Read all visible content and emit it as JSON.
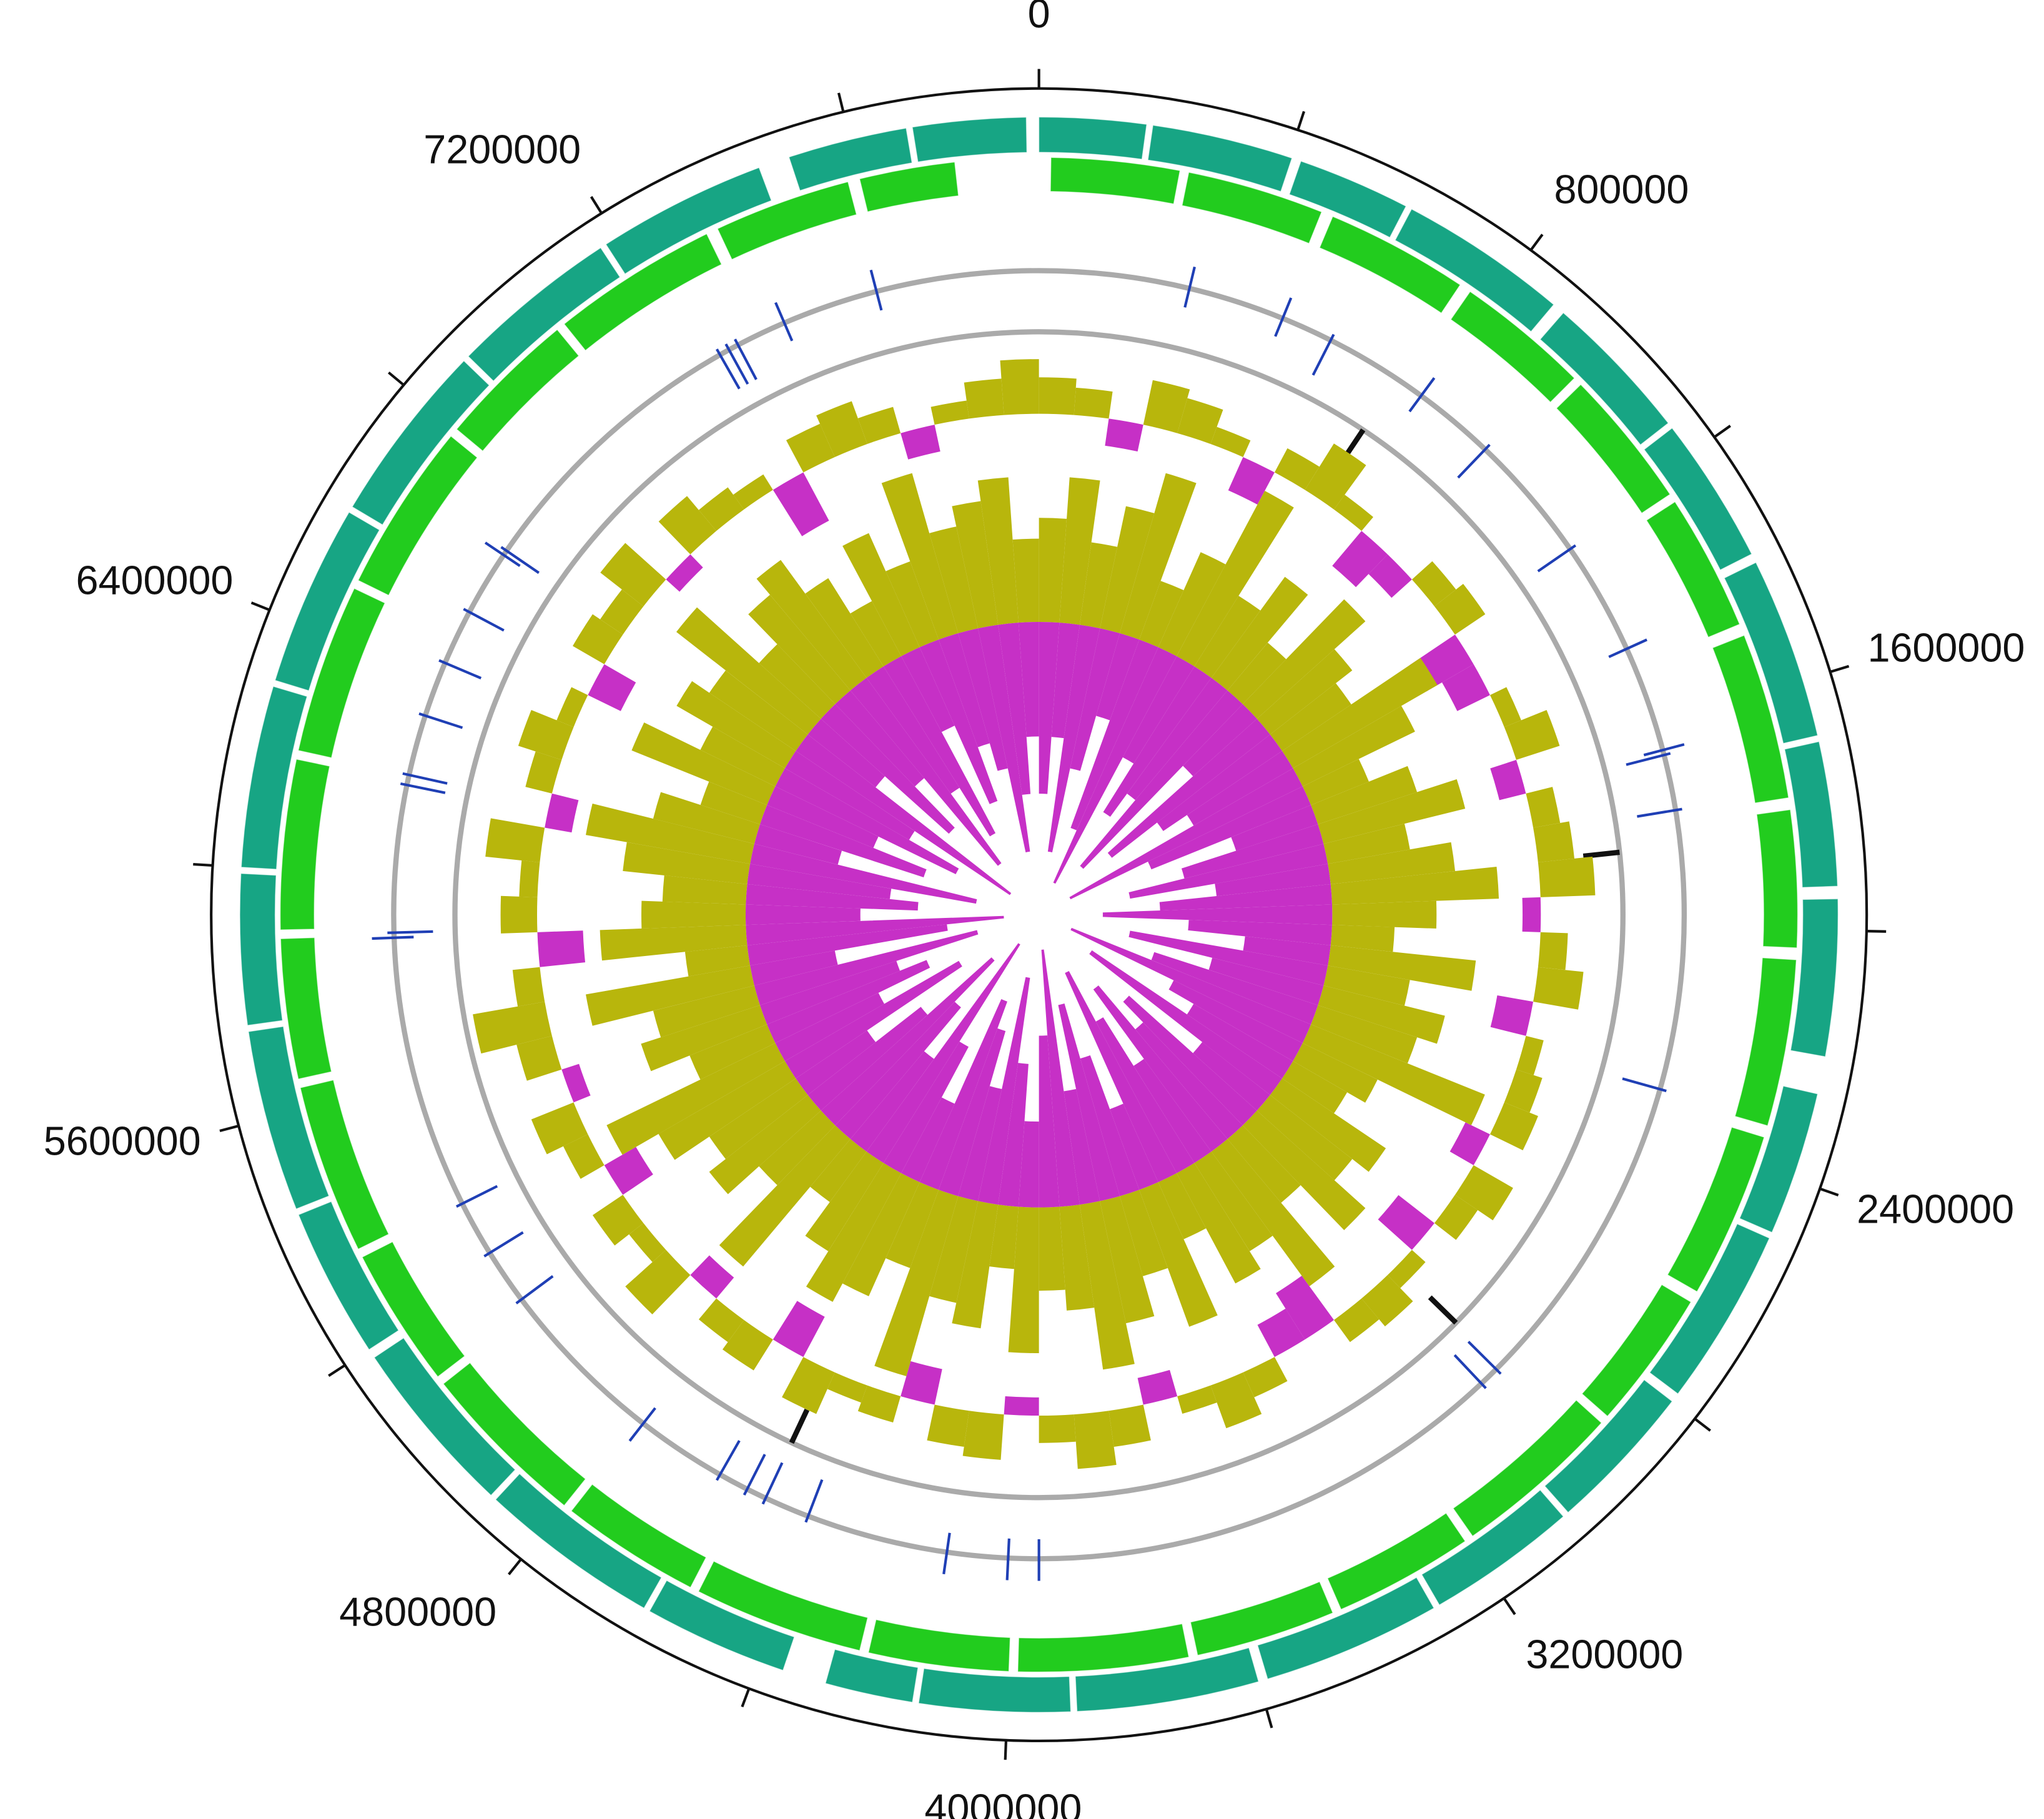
{
  "chart_data": {
    "type": "circular",
    "xlim": [
      0,
      7900000
    ],
    "xticks": [
      0,
      800000,
      1600000,
      2400000,
      3200000,
      4000000,
      4800000,
      5600000,
      6400000,
      7200000
    ],
    "minor_xticks": [
      400000,
      1200000,
      2000000,
      2800000,
      3600000,
      4400000,
      5200000,
      6000000,
      6800000,
      7600000
    ],
    "ring_color": "#aaaaaa",
    "gene_rings": [
      {
        "color": "#17a584",
        "starts": [
          0,
          180000,
          420000,
          610000,
          900000,
          1150000,
          1400000,
          1700000,
          1950000,
          2260000,
          2500000,
          2800000,
          3050000,
          3300000,
          3600000,
          3900000,
          4150000,
          4360000,
          4600000,
          4900000,
          5200000,
          5450000,
          5750000,
          6000000,
          6300000,
          6600000,
          6900000,
          7180000,
          7500000,
          7700000
        ],
        "ends": [
          170000,
          405000,
          600000,
          880000,
          1140000,
          1385000,
          1690000,
          1930000,
          2200000,
          2490000,
          2785000,
          3040000,
          3290000,
          3585000,
          3890000,
          4140000,
          4290000,
          4590000,
          4890000,
          5185000,
          5440000,
          5740000,
          5990000,
          6290000,
          6590000,
          6890000,
          7170000,
          7450000,
          7690000,
          7880000
        ]
      },
      {
        "color": "#22cc1e",
        "starts": [
          20000,
          250000,
          500000,
          760000,
          1000000,
          1250000,
          1500000,
          1800000,
          2050000,
          2350000,
          2650000,
          2900000,
          3200000,
          3450000,
          3700000,
          4000000,
          4250000,
          4550000,
          4800000,
          5100000,
          5350000,
          5650000,
          5900000,
          6200000,
          6500000,
          6800000,
          7050000,
          7350000,
          7600000
        ],
        "ends": [
          235000,
          480000,
          740000,
          985000,
          1235000,
          1480000,
          1780000,
          2030000,
          2330000,
          2630000,
          2885000,
          3185000,
          3435000,
          3685000,
          3985000,
          4235000,
          4535000,
          4785000,
          5085000,
          5335000,
          5635000,
          5885000,
          6185000,
          6485000,
          6785000,
          7035000,
          7330000,
          7580000,
          7760000
        ]
      }
    ],
    "features": {
      "color": "#1f3fb5",
      "outer": [
        296000,
        487000,
        797000,
        1440000,
        1650000,
        3950000,
        4010000,
        4130000,
        4780000,
        5880000,
        6670000,
        7390000,
        7580000
      ],
      "inner": [
        590000,
        960000,
        1216000,
        1660000,
        1770000,
        2320000,
        2960000,
        3000000,
        4410000,
        4500000,
        4540000,
        4600000,
        5120000,
        5230000,
        5340000,
        5890000,
        6180000,
        6200000,
        6320000,
        6430000,
        6540000,
        6680000,
        7250000,
        7270000,
        7290000
      ]
    },
    "markers": {
      "color": "#111111",
      "positions": [
        740000,
        1840000,
        2950000,
        4500000
      ]
    },
    "gc_content": {
      "colors": [
        "#b8b60c",
        "#c630c6"
      ],
      "values": [
        0.4,
        0.3,
        -0.3,
        0.5,
        0.4,
        0.2,
        -0.4,
        0.3,
        0.6,
        0.2,
        -0.5,
        -0.3,
        0.3,
        0.4,
        -0.6,
        -0.4,
        0.2,
        0.5,
        -0.3,
        0.3,
        0.4,
        0.6,
        -0.2,
        0.3,
        0.5,
        -0.4,
        0.2,
        0.3,
        0.4,
        -0.3,
        0.5,
        0.3,
        -0.5,
        0.2,
        0.4,
        0.3,
        -0.6,
        -0.4,
        0.3,
        0.5,
        0.2,
        -0.3,
        0.4,
        0.6,
        0.3,
        -0.2,
        0.5,
        0.4,
        -0.4,
        0.3,
        0.2,
        0.5,
        -0.5,
        0.4,
        0.3,
        -0.3,
        0.6,
        0.2,
        0.4,
        -0.4,
        0.3,
        0.5,
        -0.2,
        0.4,
        0.8,
        0.3,
        -0.5,
        0.4,
        0.2,
        0.6,
        -0.3,
        0.3,
        0.5,
        0.2,
        -0.4,
        0.4,
        0.3,
        0.6,
        -0.2,
        0.5,
        0.3,
        0.2,
        -0.6,
        0.4,
        0.5,
        0.3,
        -0.3,
        0.2,
        0.4,
        0.6
      ]
    },
    "gc_skew": {
      "above": {
        "color": "#b8b60c",
        "values": [
          0.5,
          0.7,
          0.4,
          0.6,
          0.8,
          0.3,
          0.5,
          0.9,
          0.4,
          0.6,
          0.3,
          0.7,
          0.5,
          0.4,
          0.8,
          0.6,
          0.3,
          0.5,
          0.7,
          0.4,
          0.6,
          0.8,
          0.5,
          0.3,
          0.7,
          0.4,
          0.6,
          0.5,
          0.9,
          0.4,
          0.3,
          0.6,
          0.5,
          0.7,
          0.4,
          0.8,
          0.5,
          0.6,
          0.3,
          0.7,
          0.4,
          0.6,
          0.8,
          0.5,
          0.4,
          0.7,
          0.3,
          0.6,
          0.5,
          0.9,
          0.4,
          0.6,
          0.7,
          0.5,
          0.3,
          0.8,
          0.4,
          0.6,
          0.5,
          0.7,
          0.9,
          0.4,
          0.6,
          0.5,
          0.8,
          0.3,
          0.7,
          0.5,
          0.4,
          0.6,
          0.8,
          0.5,
          0.3,
          0.7,
          0.4,
          0.6,
          0.5,
          0.8,
          0.4,
          0.6,
          0.7,
          0.5,
          0.3,
          0.6,
          0.4,
          0.8,
          0.5,
          0.6,
          0.7,
          0.4
        ]
      },
      "below": {
        "color": "#c630c6",
        "values": [
          0.6,
          0.4,
          0.8,
          0.5,
          0.3,
          0.7,
          0.9,
          0.4,
          0.6,
          0.5,
          0.8,
          0.3,
          0.7,
          0.5,
          0.4,
          0.9,
          0.6,
          0.3,
          0.5,
          0.7,
          0.4,
          0.6,
          0.8,
          0.5,
          0.3,
          0.7,
          0.4,
          0.6,
          0.9,
          0.5,
          0.4,
          0.8,
          0.3,
          0.6,
          0.5,
          0.7,
          0.4,
          0.6,
          0.8,
          0.3,
          0.5,
          0.7,
          0.4,
          0.9,
          0.6,
          0.3,
          0.5,
          0.8,
          0.4,
          0.6,
          0.7,
          0.3,
          0.5,
          0.9,
          0.4,
          0.6,
          0.8,
          0.5,
          0.3,
          0.7,
          0.4,
          0.6,
          0.5,
          0.8,
          0.3,
          0.7,
          0.9,
          0.4,
          0.6,
          0.5,
          0.8,
          0.3,
          0.6,
          0.4,
          0.7,
          0.5,
          0.9,
          0.3,
          0.6,
          0.4,
          0.8,
          0.5,
          0.7,
          0.3,
          0.6,
          0.4,
          0.5,
          0.8,
          0.6,
          0.4
        ]
      }
    }
  }
}
